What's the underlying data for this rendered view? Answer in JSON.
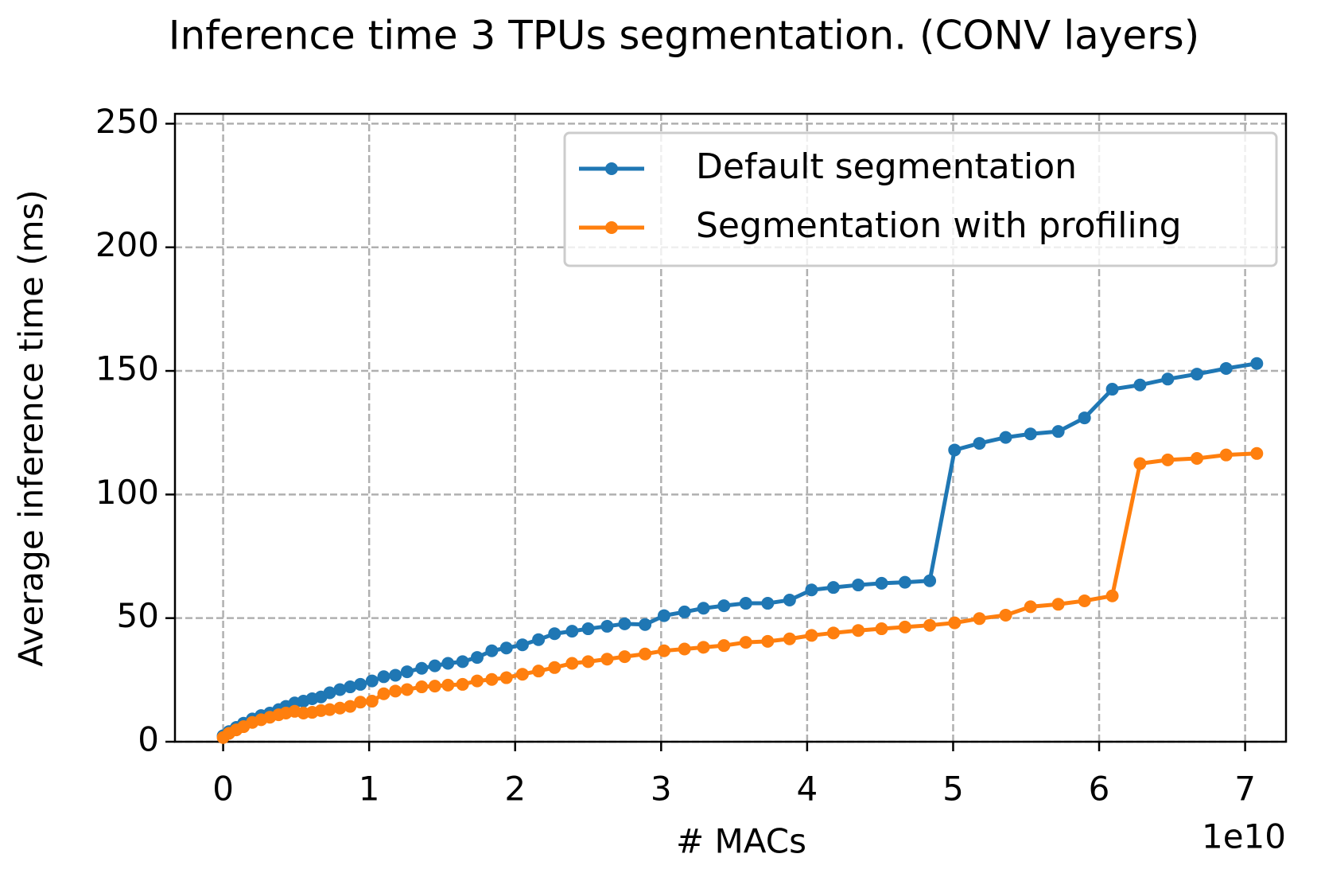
{
  "chart_data": {
    "type": "line",
    "title": "Inference time 3 TPUs segmentation. (CONV layers)",
    "x_label": "# MACs",
    "x_offset_label": "1e10",
    "y_label": "Average inference time (ms)",
    "x": [
      0,
      0.04,
      0.09,
      0.14,
      0.2,
      0.26,
      0.32,
      0.38,
      0.43,
      0.49,
      0.55,
      0.61,
      0.67,
      0.73,
      0.8,
      0.87,
      0.94,
      1.02,
      1.1,
      1.18,
      1.26,
      1.36,
      1.45,
      1.54,
      1.64,
      1.74,
      1.84,
      1.94,
      2.05,
      2.16,
      2.27,
      2.39,
      2.5,
      2.63,
      2.75,
      2.89,
      3.02,
      3.16,
      3.29,
      3.43,
      3.58,
      3.73,
      3.88,
      4.03,
      4.18,
      4.35,
      4.51,
      4.67,
      4.84,
      5.01,
      5.18,
      5.36,
      5.53,
      5.72,
      5.9,
      6.09,
      6.28,
      6.47,
      6.67,
      6.87,
      7.08
    ],
    "series": [
      {
        "name": "Default segmentation",
        "color": "#1f77b4",
        "values": [
          2.4,
          4.1,
          5.8,
          7.5,
          9.2,
          10.6,
          11.6,
          13,
          14.3,
          15.7,
          16.4,
          17.4,
          18.1,
          19.8,
          21.1,
          22.2,
          23.2,
          24.6,
          26.3,
          26.9,
          28.3,
          29.7,
          30.7,
          31.7,
          32.4,
          34.1,
          36.8,
          37.9,
          39.2,
          41.3,
          43.7,
          44.7,
          45.7,
          46.7,
          47.7,
          47.4,
          51,
          52.5,
          54,
          55,
          56,
          56,
          57.3,
          61.4,
          62.4,
          63.4,
          64.1,
          64.5,
          65.1,
          118,
          120.7,
          123.1,
          124.5,
          125.5,
          131,
          142.6,
          144.3,
          146.7,
          148.7,
          151,
          153
        ]
      },
      {
        "name": "Segmentation with profiling",
        "color": "#ff7f0e",
        "values": [
          1.7,
          3.4,
          4.8,
          6.1,
          7.8,
          8.9,
          9.9,
          10.9,
          11.6,
          12.3,
          11.6,
          11.9,
          12.6,
          13,
          13.6,
          14.3,
          16,
          16.4,
          19.4,
          20.5,
          21.1,
          22.2,
          22.5,
          22.9,
          23.2,
          24.6,
          25.2,
          25.9,
          27.3,
          28.6,
          30,
          31.7,
          32.4,
          33.4,
          34.4,
          35.5,
          36.8,
          37.5,
          38.2,
          38.9,
          40.2,
          40.6,
          41.6,
          43,
          44,
          45,
          45.7,
          46.4,
          47.1,
          48.1,
          49.8,
          51.2,
          54.6,
          55.6,
          57,
          59,
          112.5,
          114,
          114.6,
          116,
          116.6
        ]
      }
    ],
    "xlim": [
      -0.33,
      7.28
    ],
    "ylim": [
      0,
      254
    ],
    "xticks": [
      0,
      1,
      2,
      3,
      4,
      5,
      6,
      7
    ],
    "yticks": [
      0,
      50,
      100,
      150,
      200,
      250
    ],
    "grid": true,
    "legend": "upper right"
  }
}
